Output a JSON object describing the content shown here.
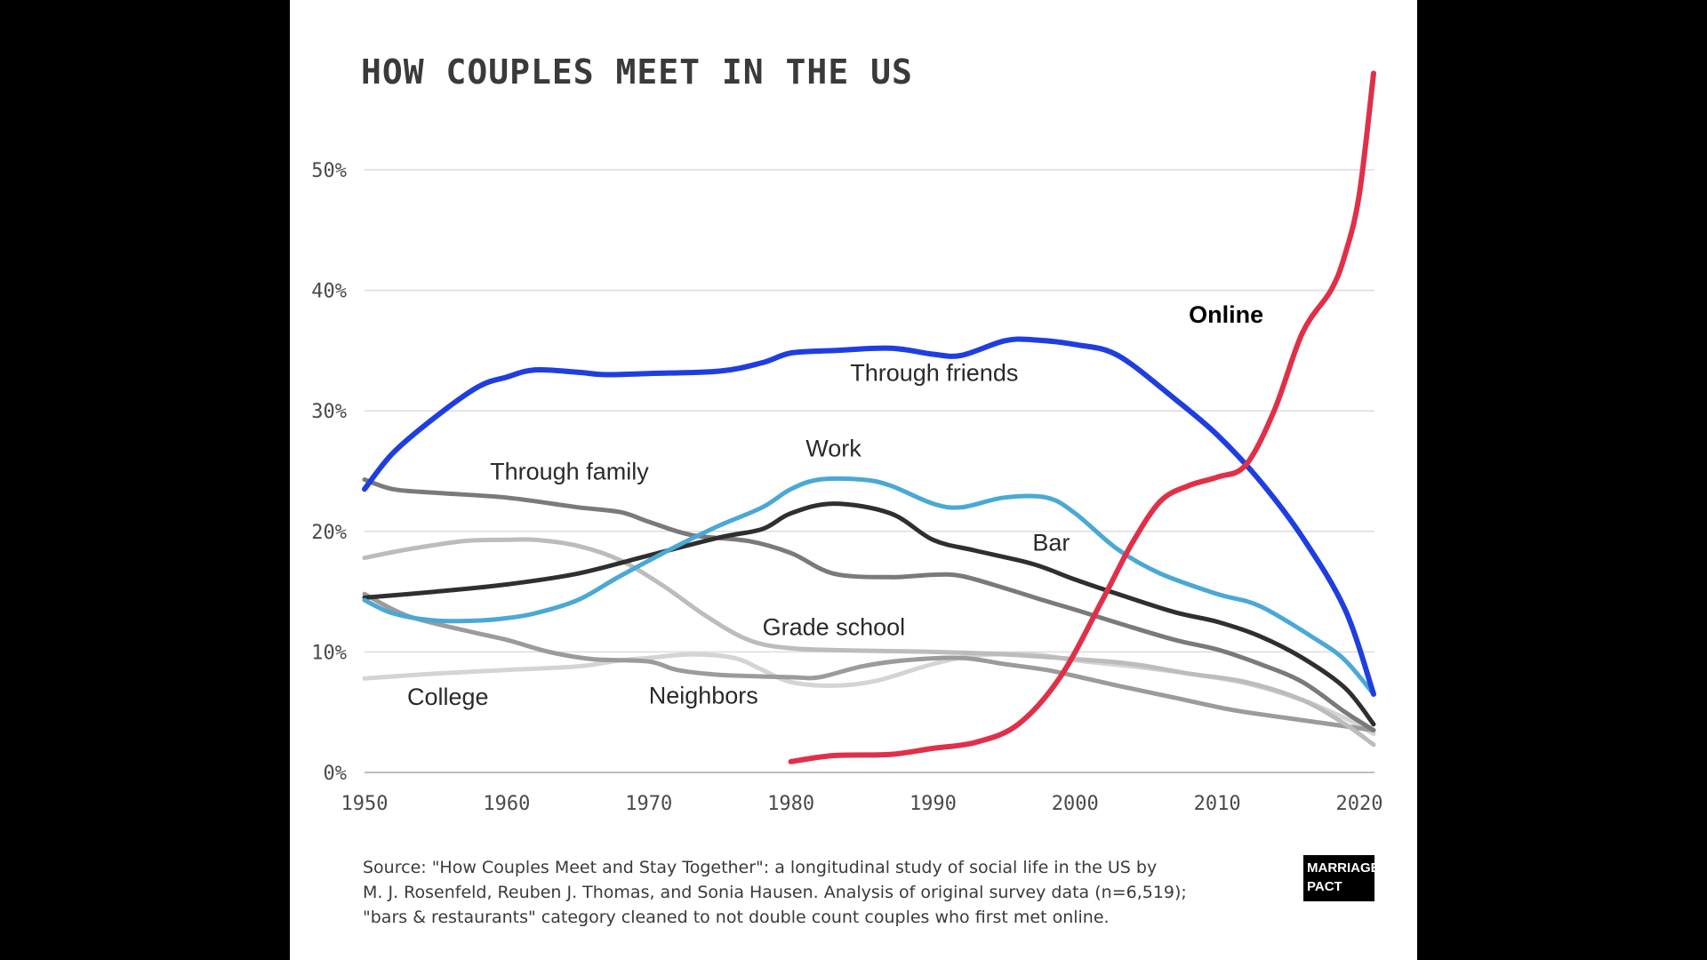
{
  "source": {
    "lines": [
      "Source: \"How Couples Meet and Stay Together\": a longitudinal study of social life in the US by",
      "M. J. Rosenfeld, Reuben J. Thomas, and Sonia Hausen. Analysis of original survey data (n=6,519);",
      "\"bars & restaurants\" category cleaned to not double count couples who first met online."
    ]
  },
  "logo": {
    "line1": "MARRIAGE",
    "line2": "PACT"
  },
  "chart_data": {
    "type": "line",
    "title": "HOW COUPLES MEET IN THE US",
    "xlabel": "",
    "ylabel": "",
    "xlim": [
      1950,
      2021
    ],
    "ylim": [
      0,
      55
    ],
    "x_ticks": [
      1950,
      1960,
      1970,
      1980,
      1990,
      2000,
      2010,
      2020
    ],
    "y_ticks": [
      0,
      10,
      20,
      30,
      40,
      50
    ],
    "y_tick_labels": [
      "0%",
      "10%",
      "20%",
      "30%",
      "40%",
      "50%"
    ],
    "grid": "horizontal",
    "legend": "none (inline labels)",
    "series": [
      {
        "name": "Through friends",
        "color": "#1f3ee0",
        "points": [
          [
            1950,
            23.5
          ],
          [
            1952,
            26.5
          ],
          [
            1955,
            29.5
          ],
          [
            1958,
            32
          ],
          [
            1960,
            32.8
          ],
          [
            1962,
            33.4
          ],
          [
            1965,
            33.2
          ],
          [
            1967,
            33
          ],
          [
            1970,
            33.1
          ],
          [
            1975,
            33.3
          ],
          [
            1978,
            34
          ],
          [
            1980,
            34.8
          ],
          [
            1983,
            35
          ],
          [
            1987,
            35.2
          ],
          [
            1990,
            34.7
          ],
          [
            1992,
            34.6
          ],
          [
            1995,
            35.8
          ],
          [
            1997,
            35.9
          ],
          [
            2000,
            35.5
          ],
          [
            2003,
            34.6
          ],
          [
            2007,
            31
          ],
          [
            2010,
            28
          ],
          [
            2013,
            24.2
          ],
          [
            2016,
            19.5
          ],
          [
            2019,
            13.5
          ],
          [
            2021,
            6.5
          ]
        ]
      },
      {
        "name": "Online",
        "color": "#e03048",
        "points": [
          [
            1980,
            0.9
          ],
          [
            1983,
            1.4
          ],
          [
            1987,
            1.5
          ],
          [
            1990,
            2
          ],
          [
            1993,
            2.5
          ],
          [
            1996,
            4
          ],
          [
            1999,
            8
          ],
          [
            2002,
            14.5
          ],
          [
            2004,
            19
          ],
          [
            2006,
            22.5
          ],
          [
            2008,
            23.8
          ],
          [
            2010,
            24.5
          ],
          [
            2012,
            25.5
          ],
          [
            2014,
            30
          ],
          [
            2016,
            36.5
          ],
          [
            2018,
            40
          ],
          [
            2019,
            43
          ],
          [
            2020,
            48
          ],
          [
            2021,
            58
          ]
        ]
      },
      {
        "name": "Work",
        "color": "#4aa8d6",
        "points": [
          [
            1950,
            14.3
          ],
          [
            1952,
            13.2
          ],
          [
            1955,
            12.6
          ],
          [
            1958,
            12.6
          ],
          [
            1960,
            12.8
          ],
          [
            1962,
            13.2
          ],
          [
            1965,
            14.3
          ],
          [
            1968,
            16.3
          ],
          [
            1972,
            18.8
          ],
          [
            1975,
            20.5
          ],
          [
            1978,
            22
          ],
          [
            1980,
            23.5
          ],
          [
            1982,
            24.3
          ],
          [
            1985,
            24.3
          ],
          [
            1987,
            23.8
          ],
          [
            1990,
            22.3
          ],
          [
            1992,
            22
          ],
          [
            1995,
            22.8
          ],
          [
            1998,
            22.8
          ],
          [
            2000,
            21.5
          ],
          [
            2003,
            18.5
          ],
          [
            2006,
            16.5
          ],
          [
            2010,
            14.8
          ],
          [
            2013,
            13.8
          ],
          [
            2017,
            11
          ],
          [
            2019,
            9.3
          ],
          [
            2021,
            6.5
          ]
        ]
      },
      {
        "name": "Bar",
        "color": "#2f2f2f",
        "points": [
          [
            1950,
            14.5
          ],
          [
            1955,
            15
          ],
          [
            1960,
            15.6
          ],
          [
            1965,
            16.5
          ],
          [
            1970,
            18
          ],
          [
            1975,
            19.5
          ],
          [
            1978,
            20.2
          ],
          [
            1980,
            21.5
          ],
          [
            1983,
            22.3
          ],
          [
            1987,
            21.5
          ],
          [
            1990,
            19.3
          ],
          [
            1993,
            18.4
          ],
          [
            1997,
            17.3
          ],
          [
            2000,
            16
          ],
          [
            2003,
            14.8
          ],
          [
            2007,
            13.3
          ],
          [
            2010,
            12.5
          ],
          [
            2013,
            11.3
          ],
          [
            2016,
            9.5
          ],
          [
            2019,
            7
          ],
          [
            2021,
            4
          ]
        ]
      },
      {
        "name": "Through family",
        "color": "#7a7a7a",
        "points": [
          [
            1950,
            24.3
          ],
          [
            1952,
            23.5
          ],
          [
            1955,
            23.2
          ],
          [
            1960,
            22.8
          ],
          [
            1965,
            22
          ],
          [
            1968,
            21.6
          ],
          [
            1970,
            20.8
          ],
          [
            1973,
            19.7
          ],
          [
            1977,
            19.2
          ],
          [
            1980,
            18.2
          ],
          [
            1983,
            16.5
          ],
          [
            1987,
            16.2
          ],
          [
            1990,
            16.4
          ],
          [
            1992,
            16.3
          ],
          [
            1995,
            15.3
          ],
          [
            1998,
            14.2
          ],
          [
            2000,
            13.5
          ],
          [
            2003,
            12.4
          ],
          [
            2007,
            11
          ],
          [
            2010,
            10.2
          ],
          [
            2013,
            9
          ],
          [
            2016,
            7.5
          ],
          [
            2019,
            5
          ],
          [
            2021,
            3.5
          ]
        ]
      },
      {
        "name": "Grade school",
        "color": "#bcbcbc",
        "points": [
          [
            1950,
            17.8
          ],
          [
            1953,
            18.5
          ],
          [
            1957,
            19.2
          ],
          [
            1960,
            19.3
          ],
          [
            1962,
            19.3
          ],
          [
            1965,
            18.8
          ],
          [
            1968,
            17.6
          ],
          [
            1971,
            15.5
          ],
          [
            1974,
            13
          ],
          [
            1977,
            11
          ],
          [
            1980,
            10.3
          ],
          [
            1985,
            10.1
          ],
          [
            1990,
            10
          ],
          [
            1995,
            9.8
          ],
          [
            2000,
            9.4
          ],
          [
            2004,
            9
          ],
          [
            2008,
            8.2
          ],
          [
            2012,
            7.5
          ],
          [
            2016,
            6
          ],
          [
            2019,
            4
          ],
          [
            2021,
            2.3
          ]
        ]
      },
      {
        "name": "Neighbors",
        "color": "#9b9b9b",
        "points": [
          [
            1950,
            14.8
          ],
          [
            1953,
            13
          ],
          [
            1957,
            11.8
          ],
          [
            1960,
            11
          ],
          [
            1963,
            10
          ],
          [
            1966,
            9.4
          ],
          [
            1970,
            9.2
          ],
          [
            1972,
            8.5
          ],
          [
            1975,
            8.1
          ],
          [
            1980,
            7.9
          ],
          [
            1982,
            7.9
          ],
          [
            1985,
            8.8
          ],
          [
            1988,
            9.3
          ],
          [
            1992,
            9.5
          ],
          [
            1995,
            9
          ],
          [
            1998,
            8.5
          ],
          [
            2000,
            8
          ],
          [
            2003,
            7.2
          ],
          [
            2007,
            6.2
          ],
          [
            2011,
            5.2
          ],
          [
            2015,
            4.5
          ],
          [
            2021,
            3.5
          ]
        ]
      },
      {
        "name": "College",
        "color": "#d4d4d4",
        "points": [
          [
            1950,
            7.8
          ],
          [
            1955,
            8.2
          ],
          [
            1960,
            8.5
          ],
          [
            1965,
            8.8
          ],
          [
            1968,
            9.3
          ],
          [
            1970,
            9.5
          ],
          [
            1973,
            9.8
          ],
          [
            1976,
            9.5
          ],
          [
            1978,
            8.5
          ],
          [
            1980,
            7.5
          ],
          [
            1983,
            7.2
          ],
          [
            1986,
            7.6
          ],
          [
            1990,
            9
          ],
          [
            1993,
            9.7
          ],
          [
            1997,
            9.8
          ],
          [
            2000,
            9.3
          ],
          [
            2004,
            8.8
          ],
          [
            2008,
            8.2
          ],
          [
            2012,
            7.4
          ],
          [
            2016,
            6
          ],
          [
            2019,
            4.5
          ],
          [
            2021,
            3.2
          ]
        ]
      }
    ],
    "annotations": [
      {
        "text": "Online",
        "x": 2008,
        "y": 37.3,
        "bold": true
      },
      {
        "text": "Through friends",
        "x": 1996,
        "y": 32.5,
        "anchor": "end"
      },
      {
        "text": "Work",
        "x": 1983,
        "y": 26.2,
        "anchor": "middle"
      },
      {
        "text": "Through family",
        "x": 1970,
        "y": 24.3,
        "anchor": "end"
      },
      {
        "text": "Bar",
        "x": 1997,
        "y": 18.4
      },
      {
        "text": "Grade school",
        "x": 1978,
        "y": 11.4
      },
      {
        "text": "College",
        "x": 1953,
        "y": 5.6
      },
      {
        "text": "Neighbors",
        "x": 1970,
        "y": 5.7
      }
    ]
  }
}
